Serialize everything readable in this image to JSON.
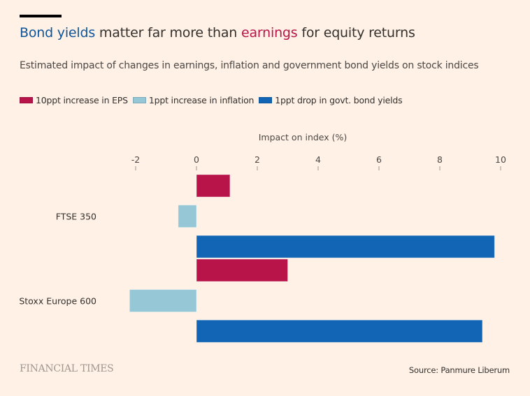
{
  "header": {
    "title_part1": "Bond yields",
    "title_part2": " matter far more than ",
    "title_part3": "earnings",
    "title_part4": " for equity returns",
    "subtitle": "Estimated impact of changes in earnings, inflation and government bond yields on stock indices"
  },
  "colors": {
    "background": "#fff1e5",
    "eps": "#b8144a",
    "inflation": "#96c7d6",
    "bond": "#1264b4",
    "title_blue": "#0f5499"
  },
  "chart_data": {
    "type": "bar",
    "orientation": "horizontal",
    "title": "Bond yields matter far more than earnings for equity returns",
    "subtitle": "Estimated impact of changes in earnings, inflation and government bond yields on stock indices",
    "xlabel": "Impact on index (%)",
    "ylabel": "",
    "xlim": [
      -2,
      10
    ],
    "xticks": [
      -2,
      0,
      2,
      4,
      6,
      8,
      10
    ],
    "xtick_labels": [
      "-2",
      "0",
      "2",
      "4",
      "6",
      "8",
      "10"
    ],
    "grid": false,
    "legend_position": "top-left",
    "categories": [
      "FTSE 350",
      "Stoxx Europe 600"
    ],
    "series": [
      {
        "name": "10ppt increase in EPS",
        "color": "#b8144a",
        "values": [
          1.1,
          3.0
        ]
      },
      {
        "name": "1ppt increase in inflation",
        "color": "#96c7d6",
        "values": [
          -0.6,
          -2.2
        ]
      },
      {
        "name": "1ppt drop in govt. bond yields",
        "color": "#1264b4",
        "values": [
          9.8,
          9.4
        ]
      }
    ]
  },
  "footer": {
    "logo": "FINANCIAL TIMES",
    "source": "Source: Panmure Liberum"
  }
}
